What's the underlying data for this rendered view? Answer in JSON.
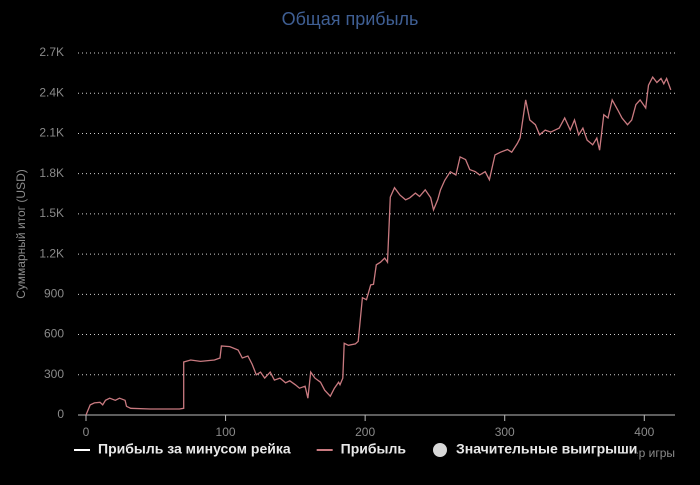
{
  "chart_data": {
    "type": "line",
    "title": "Общая прибыль",
    "title_color": "#3f5f94",
    "x_label": "Номер игры",
    "y_label": "Суммарный итог (USD)",
    "xlim": [
      0,
      422
    ],
    "ylim": [
      0,
      2700
    ],
    "xticks": [
      0,
      100,
      200,
      300,
      400
    ],
    "yticks": [
      0,
      300,
      600,
      900,
      {
        "value": 1200,
        "label": "1.2K"
      },
      {
        "value": 1500,
        "label": "1.5K"
      },
      {
        "value": 1800,
        "label": "1.8K"
      },
      {
        "value": 2100,
        "label": "2.1K"
      },
      {
        "value": 2400,
        "label": "2.4K"
      },
      {
        "value": 2700,
        "label": "2.7K"
      }
    ],
    "grid": true,
    "x": [
      0,
      3,
      6,
      10,
      12,
      14,
      17,
      21,
      24,
      28,
      29,
      32,
      46,
      67,
      70,
      70,
      75,
      82,
      92,
      96,
      97,
      103,
      109,
      112,
      116,
      119,
      122,
      125,
      128,
      132,
      135,
      139,
      143,
      146,
      150,
      153,
      157,
      159,
      161,
      164,
      168,
      171,
      175,
      178,
      181,
      182,
      184,
      185,
      188,
      193,
      195,
      198,
      201,
      204,
      206,
      208,
      211,
      214,
      216,
      218,
      221,
      225,
      229,
      232,
      236,
      239,
      243,
      247,
      249,
      252,
      254,
      257,
      261,
      265,
      268,
      272,
      275,
      279,
      282,
      286,
      289,
      293,
      297,
      302,
      305,
      309,
      311,
      315,
      318,
      322,
      325,
      329,
      333,
      336,
      339,
      343,
      347,
      350,
      353,
      356,
      359,
      363,
      366,
      368,
      371,
      374,
      377,
      381,
      384,
      388,
      391,
      394,
      397,
      401,
      403,
      406,
      409,
      412,
      414,
      416,
      419
    ],
    "series": [
      {
        "name": "Прибыль",
        "color": "#c97a80",
        "legend_text_color": "#5a7db5",
        "values": [
          0,
          75,
          90,
          95,
          75,
          110,
          125,
          110,
          125,
          110,
          65,
          50,
          45,
          45,
          50,
          395,
          410,
          400,
          410,
          425,
          515,
          510,
          485,
          425,
          440,
          380,
          300,
          320,
          275,
          320,
          260,
          275,
          240,
          255,
          225,
          200,
          215,
          125,
          320,
          275,
          245,
          185,
          140,
          200,
          245,
          225,
          275,
          535,
          520,
          530,
          550,
          875,
          860,
          970,
          975,
          1120,
          1140,
          1170,
          1140,
          1625,
          1695,
          1640,
          1605,
          1620,
          1655,
          1630,
          1680,
          1620,
          1530,
          1605,
          1680,
          1750,
          1815,
          1790,
          1925,
          1905,
          1830,
          1815,
          1790,
          1815,
          1755,
          1940,
          1960,
          1980,
          1960,
          2025,
          2065,
          2350,
          2200,
          2165,
          2090,
          2125,
          2110,
          2125,
          2140,
          2215,
          2125,
          2200,
          2090,
          2140,
          2050,
          2015,
          2065,
          1975,
          2240,
          2215,
          2350,
          2275,
          2215,
          2165,
          2200,
          2315,
          2350,
          2290,
          2460,
          2520,
          2480,
          2510,
          2470,
          2510,
          2425
        ]
      }
    ],
    "hidden_series": [
      {
        "name": "Прибыль за минусом рейка",
        "color": "#ffffff",
        "marker": "line"
      },
      {
        "name": "Значительные выигрыши",
        "color": "#d8d8d8",
        "marker": "circle"
      }
    ]
  }
}
